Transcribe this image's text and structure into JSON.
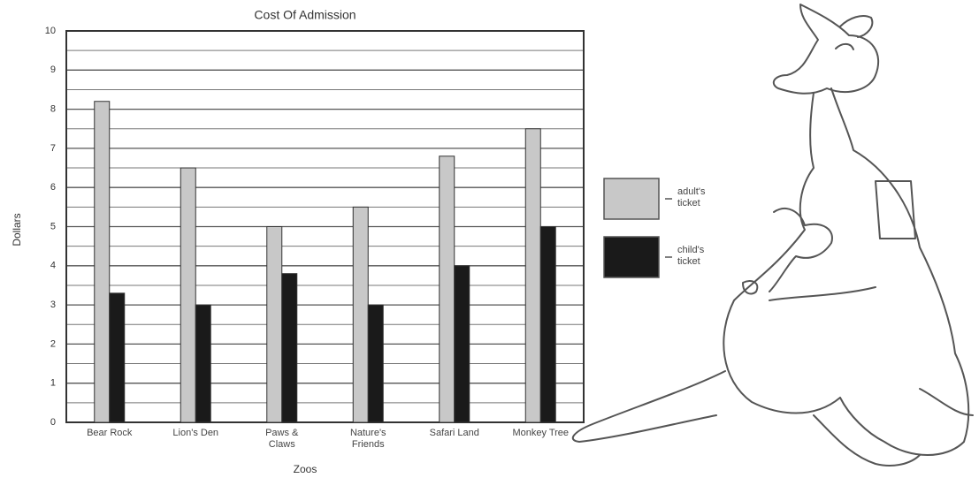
{
  "chart_data": {
    "type": "bar",
    "title": "Cost Of Admission",
    "x_label": "Zoos",
    "y_label": "Dollars",
    "categories": [
      "Bear Rock",
      "Lion's Den",
      "Paws & Claws",
      "Nature's Friends",
      "Safari Land",
      "Monkey Tree"
    ],
    "series": [
      {
        "name": "adult's ticket",
        "color": "#c8c8c8",
        "values": [
          8.2,
          6.5,
          5,
          5.5,
          6.8,
          7.5
        ]
      },
      {
        "name": "child's ticket",
        "color": "#1a1a1a",
        "values": [
          3.3,
          3,
          3.8,
          3,
          4,
          5
        ]
      }
    ],
    "ylim": [
      0,
      10
    ],
    "yticks": [
      0,
      1,
      2,
      3,
      4,
      5,
      6,
      7,
      8,
      9,
      10
    ],
    "minor_yticks": [
      0.5,
      1.5,
      2.5,
      3.5,
      4.5,
      5.5,
      6.5,
      7.5,
      8.5,
      9.5
    ],
    "grid": true,
    "legend": "right"
  }
}
